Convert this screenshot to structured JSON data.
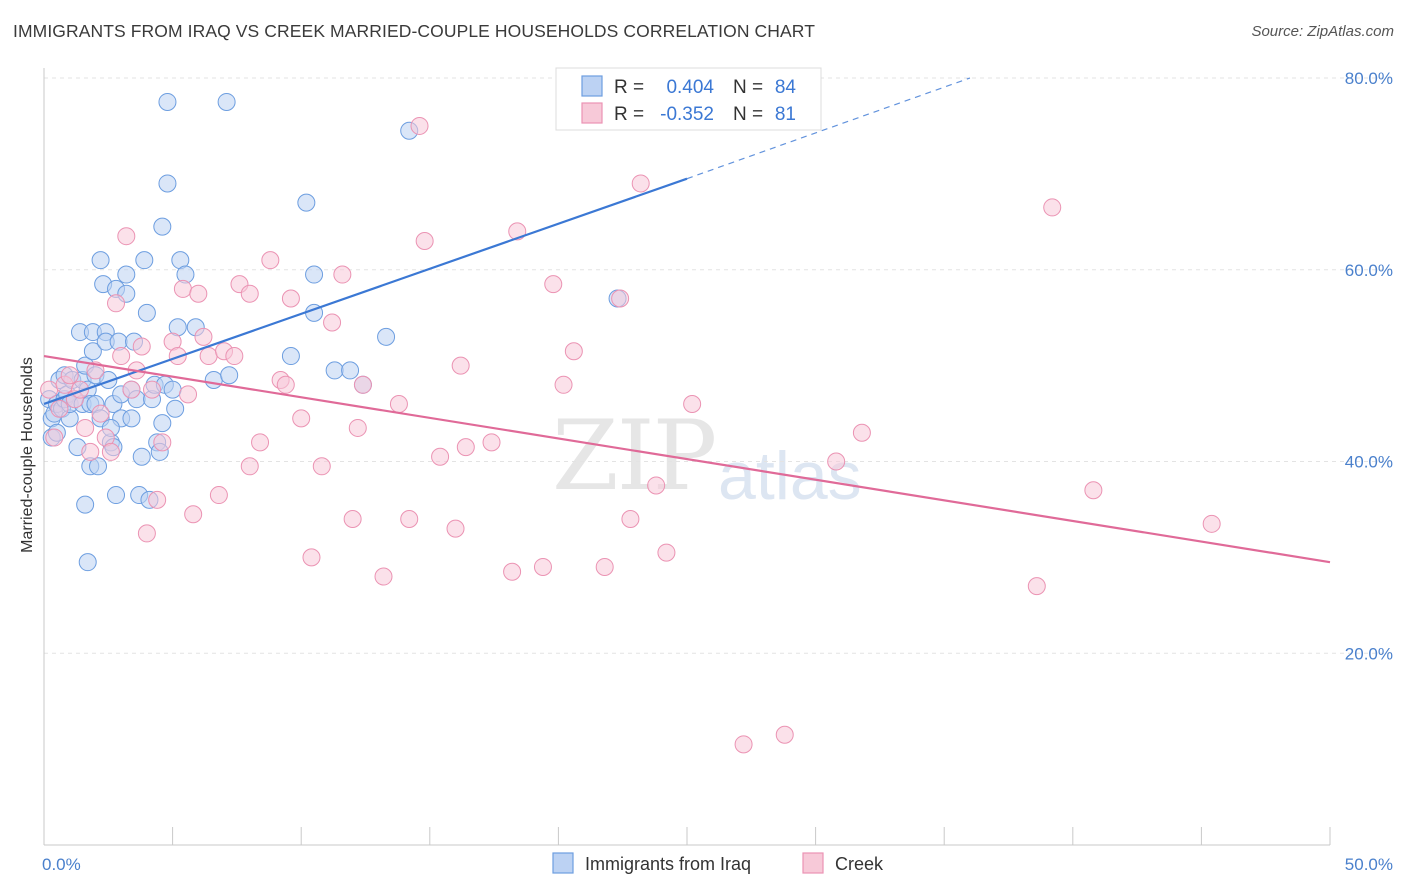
{
  "title": "IMMIGRANTS FROM IRAQ VS CREEK MARRIED-COUPLE HOUSEHOLDS CORRELATION CHART",
  "source": "Source: ZipAtlas.com",
  "watermark": {
    "zip": "ZIP",
    "atlas": "atlas"
  },
  "colors": {
    "blue": "#3b78d4",
    "blue_fill": "#bcd2f3",
    "pink": "#e06a98",
    "pink_fill": "#f7c9d8",
    "tick_label": "#4a80cc",
    "grid": "#e3e3e3"
  },
  "chart_data": {
    "type": "scatter",
    "ylabel": "Married-couple Households",
    "xlim": [
      0,
      50
    ],
    "ylim": [
      0,
      80
    ],
    "x_tick_labels": [
      {
        "value": 0,
        "label": "0.0%"
      },
      {
        "value": 50,
        "label": "50.0%"
      }
    ],
    "y_ticks": [
      {
        "value": 20,
        "label": "20.0%"
      },
      {
        "value": 40,
        "label": "40.0%"
      },
      {
        "value": 60,
        "label": "60.0%"
      },
      {
        "value": 80,
        "label": "80.0%"
      }
    ],
    "legend": {
      "stats": [
        {
          "r_label": "R =",
          "r": "0.404",
          "n_label": "N =",
          "n": "84"
        },
        {
          "r_label": "R =",
          "r": "-0.352",
          "n_label": "N =",
          "n": "81"
        }
      ],
      "placement": "top-center"
    },
    "series": [
      {
        "name": "Immigrants from Iraq",
        "color": "#3b78d4",
        "trend": {
          "x0": 0,
          "y0": 46.0,
          "x1": 25,
          "y1": 69.5,
          "dash_to_x": 36,
          "dash_to_y": 80.0
        },
        "points": [
          [
            0.2,
            46.5
          ],
          [
            0.3,
            44.5
          ],
          [
            0.3,
            42.5
          ],
          [
            0.4,
            45.0
          ],
          [
            0.5,
            46.0
          ],
          [
            0.6,
            48.5
          ],
          [
            0.7,
            45.5
          ],
          [
            0.8,
            46.5
          ],
          [
            0.8,
            49.0
          ],
          [
            0.9,
            47.0
          ],
          [
            1.0,
            44.5
          ],
          [
            1.0,
            46.0
          ],
          [
            1.1,
            48.5
          ],
          [
            1.2,
            46.5
          ],
          [
            1.3,
            41.5
          ],
          [
            1.4,
            53.5
          ],
          [
            1.5,
            48.5
          ],
          [
            1.5,
            46.0
          ],
          [
            1.6,
            50.0
          ],
          [
            1.7,
            47.5
          ],
          [
            1.6,
            35.5
          ],
          [
            1.7,
            29.5
          ],
          [
            1.8,
            39.5
          ],
          [
            1.8,
            46.0
          ],
          [
            1.9,
            51.5
          ],
          [
            1.9,
            53.5
          ],
          [
            2.0,
            49.0
          ],
          [
            2.0,
            46.0
          ],
          [
            2.1,
            39.5
          ],
          [
            2.2,
            44.5
          ],
          [
            2.2,
            61.0
          ],
          [
            2.3,
            58.5
          ],
          [
            2.4,
            53.5
          ],
          [
            2.4,
            52.5
          ],
          [
            2.5,
            48.5
          ],
          [
            2.6,
            42.0
          ],
          [
            2.7,
            46.0
          ],
          [
            2.7,
            41.5
          ],
          [
            2.8,
            58.0
          ],
          [
            2.8,
            36.5
          ],
          [
            2.9,
            52.5
          ],
          [
            3.0,
            47.0
          ],
          [
            3.0,
            44.5
          ],
          [
            3.2,
            59.5
          ],
          [
            3.2,
            57.5
          ],
          [
            3.4,
            44.5
          ],
          [
            3.4,
            47.5
          ],
          [
            3.5,
            52.5
          ],
          [
            3.6,
            46.5
          ],
          [
            3.7,
            36.5
          ],
          [
            3.8,
            40.5
          ],
          [
            3.9,
            61.0
          ],
          [
            4.0,
            55.5
          ],
          [
            4.1,
            36.0
          ],
          [
            4.2,
            46.5
          ],
          [
            4.3,
            48.0
          ],
          [
            4.4,
            42.0
          ],
          [
            4.5,
            41.0
          ],
          [
            4.6,
            44.0
          ],
          [
            4.6,
            64.5
          ],
          [
            4.7,
            48.0
          ],
          [
            4.8,
            77.5
          ],
          [
            4.8,
            69.0
          ],
          [
            5.0,
            47.5
          ],
          [
            5.1,
            45.5
          ],
          [
            5.2,
            54.0
          ],
          [
            5.3,
            61.0
          ],
          [
            5.5,
            59.5
          ],
          [
            5.9,
            54.0
          ],
          [
            6.6,
            48.5
          ],
          [
            7.1,
            77.5
          ],
          [
            7.2,
            49.0
          ],
          [
            9.6,
            51.0
          ],
          [
            10.2,
            67.0
          ],
          [
            10.5,
            59.5
          ],
          [
            10.5,
            55.5
          ],
          [
            11.3,
            49.5
          ],
          [
            11.9,
            49.5
          ],
          [
            12.4,
            48.0
          ],
          [
            13.3,
            53.0
          ],
          [
            14.2,
            74.5
          ],
          [
            22.3,
            57.0
          ],
          [
            0.5,
            43.0
          ],
          [
            2.6,
            43.5
          ]
        ]
      },
      {
        "name": "Creek",
        "color": "#e06a98",
        "trend": {
          "x0": 0,
          "y0": 51.0,
          "x1": 50,
          "y1": 29.5
        },
        "points": [
          [
            0.2,
            47.5
          ],
          [
            0.4,
            42.5
          ],
          [
            0.6,
            45.5
          ],
          [
            0.8,
            48.0
          ],
          [
            1.0,
            49.0
          ],
          [
            1.2,
            46.5
          ],
          [
            1.4,
            47.5
          ],
          [
            1.6,
            43.5
          ],
          [
            1.8,
            41.0
          ],
          [
            2.0,
            49.5
          ],
          [
            2.2,
            45.0
          ],
          [
            2.4,
            42.5
          ],
          [
            2.6,
            41.0
          ],
          [
            2.8,
            56.5
          ],
          [
            3.0,
            51.0
          ],
          [
            3.2,
            63.5
          ],
          [
            3.4,
            47.5
          ],
          [
            3.6,
            49.5
          ],
          [
            3.8,
            52.0
          ],
          [
            4.0,
            32.5
          ],
          [
            4.2,
            47.5
          ],
          [
            4.4,
            36.0
          ],
          [
            4.6,
            42.0
          ],
          [
            5.0,
            52.5
          ],
          [
            5.2,
            51.0
          ],
          [
            5.4,
            58.0
          ],
          [
            5.6,
            47.0
          ],
          [
            5.8,
            34.5
          ],
          [
            6.0,
            57.5
          ],
          [
            6.2,
            53.0
          ],
          [
            6.4,
            51.0
          ],
          [
            6.8,
            36.5
          ],
          [
            7.0,
            51.5
          ],
          [
            7.4,
            51.0
          ],
          [
            7.6,
            58.5
          ],
          [
            8.0,
            57.5
          ],
          [
            8.4,
            42.0
          ],
          [
            8.8,
            61.0
          ],
          [
            9.2,
            48.5
          ],
          [
            9.4,
            48.0
          ],
          [
            9.6,
            57.0
          ],
          [
            10.0,
            44.5
          ],
          [
            10.4,
            30.0
          ],
          [
            10.8,
            39.5
          ],
          [
            11.2,
            54.5
          ],
          [
            11.6,
            59.5
          ],
          [
            12.0,
            34.0
          ],
          [
            12.2,
            43.5
          ],
          [
            12.4,
            48.0
          ],
          [
            13.2,
            28.0
          ],
          [
            13.8,
            46.0
          ],
          [
            14.2,
            34.0
          ],
          [
            14.6,
            75.0
          ],
          [
            14.8,
            63.0
          ],
          [
            15.4,
            40.5
          ],
          [
            16.0,
            33.0
          ],
          [
            16.2,
            50.0
          ],
          [
            16.4,
            41.5
          ],
          [
            17.4,
            42.0
          ],
          [
            18.2,
            28.5
          ],
          [
            18.4,
            64.0
          ],
          [
            19.4,
            29.0
          ],
          [
            19.8,
            58.5
          ],
          [
            20.2,
            48.0
          ],
          [
            20.6,
            51.5
          ],
          [
            21.8,
            29.0
          ],
          [
            22.4,
            57.0
          ],
          [
            22.8,
            34.0
          ],
          [
            23.2,
            69.0
          ],
          [
            23.8,
            37.5
          ],
          [
            24.2,
            30.5
          ],
          [
            25.2,
            46.0
          ],
          [
            27.2,
            10.5
          ],
          [
            28.8,
            11.5
          ],
          [
            30.8,
            40.0
          ],
          [
            31.8,
            43.0
          ],
          [
            38.6,
            27.0
          ],
          [
            39.2,
            66.5
          ],
          [
            40.8,
            37.0
          ],
          [
            45.4,
            33.5
          ],
          [
            8.0,
            39.5
          ]
        ]
      }
    ]
  }
}
